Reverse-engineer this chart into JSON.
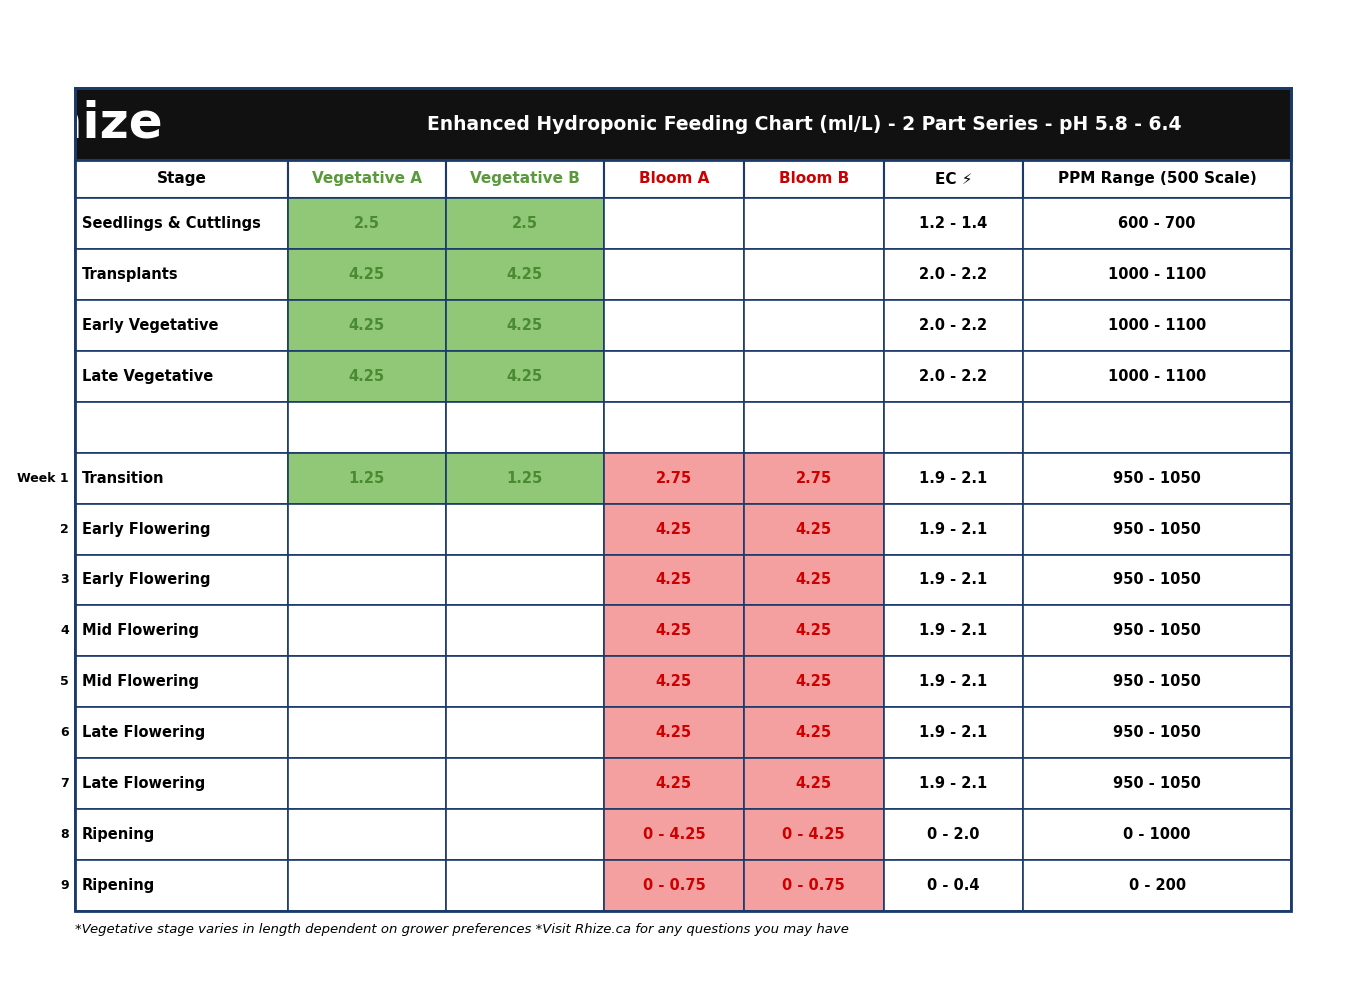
{
  "title": "Enhanced Hydroponic Feeding Chart (ml/L) - 2 Part Series - pH 5.8 - 6.4",
  "logo_text": "rhize",
  "header_bg": "#111111",
  "header_text_color": "#ffffff",
  "table_border_color": "#1a3a6b",
  "col_headers": [
    "Stage",
    "Vegetative A",
    "Vegetative B",
    "Bloom A",
    "Bloom B",
    "EC ⚡",
    "PPM Range (500 Scale)"
  ],
  "col_header_colors": [
    "#000000",
    "#5a9a3a",
    "#5a9a3a",
    "#cc0000",
    "#cc0000",
    "#000000",
    "#000000"
  ],
  "rows": [
    {
      "week": "",
      "stage": "Seedlings & Cuttlings",
      "veg_a": "2.5",
      "veg_b": "2.5",
      "bloom_a": "",
      "bloom_b": "",
      "ec": "1.2 - 1.4",
      "ppm": "600 - 700",
      "veg_bg": "#90c878",
      "bloom_bg": "#ffffff"
    },
    {
      "week": "",
      "stage": "Transplants",
      "veg_a": "4.25",
      "veg_b": "4.25",
      "bloom_a": "",
      "bloom_b": "",
      "ec": "2.0 - 2.2",
      "ppm": "1000 - 1100",
      "veg_bg": "#90c878",
      "bloom_bg": "#ffffff"
    },
    {
      "week": "",
      "stage": "Early Vegetative",
      "veg_a": "4.25",
      "veg_b": "4.25",
      "bloom_a": "",
      "bloom_b": "",
      "ec": "2.0 - 2.2",
      "ppm": "1000 - 1100",
      "veg_bg": "#90c878",
      "bloom_bg": "#ffffff"
    },
    {
      "week": "",
      "stage": "Late Vegetative",
      "veg_a": "4.25",
      "veg_b": "4.25",
      "bloom_a": "",
      "bloom_b": "",
      "ec": "2.0 - 2.2",
      "ppm": "1000 - 1100",
      "veg_bg": "#90c878",
      "bloom_bg": "#ffffff"
    },
    {
      "week": "",
      "stage": "",
      "veg_a": "",
      "veg_b": "",
      "bloom_a": "",
      "bloom_b": "",
      "ec": "",
      "ppm": "",
      "veg_bg": "#ffffff",
      "bloom_bg": "#ffffff"
    },
    {
      "week": "Week 1",
      "stage": "Transition",
      "veg_a": "1.25",
      "veg_b": "1.25",
      "bloom_a": "2.75",
      "bloom_b": "2.75",
      "ec": "1.9 - 2.1",
      "ppm": "950 - 1050",
      "veg_bg": "#90c878",
      "bloom_bg": "#f5a0a0"
    },
    {
      "week": "2",
      "stage": "Early Flowering",
      "veg_a": "",
      "veg_b": "",
      "bloom_a": "4.25",
      "bloom_b": "4.25",
      "ec": "1.9 - 2.1",
      "ppm": "950 - 1050",
      "veg_bg": "#ffffff",
      "bloom_bg": "#f5a0a0"
    },
    {
      "week": "3",
      "stage": "Early Flowering",
      "veg_a": "",
      "veg_b": "",
      "bloom_a": "4.25",
      "bloom_b": "4.25",
      "ec": "1.9 - 2.1",
      "ppm": "950 - 1050",
      "veg_bg": "#ffffff",
      "bloom_bg": "#f5a0a0"
    },
    {
      "week": "4",
      "stage": "Mid Flowering",
      "veg_a": "",
      "veg_b": "",
      "bloom_a": "4.25",
      "bloom_b": "4.25",
      "ec": "1.9 - 2.1",
      "ppm": "950 - 1050",
      "veg_bg": "#ffffff",
      "bloom_bg": "#f5a0a0"
    },
    {
      "week": "5",
      "stage": "Mid Flowering",
      "veg_a": "",
      "veg_b": "",
      "bloom_a": "4.25",
      "bloom_b": "4.25",
      "ec": "1.9 - 2.1",
      "ppm": "950 - 1050",
      "veg_bg": "#ffffff",
      "bloom_bg": "#f5a0a0"
    },
    {
      "week": "6",
      "stage": "Late Flowering",
      "veg_a": "",
      "veg_b": "",
      "bloom_a": "4.25",
      "bloom_b": "4.25",
      "ec": "1.9 - 2.1",
      "ppm": "950 - 1050",
      "veg_bg": "#ffffff",
      "bloom_bg": "#f5a0a0"
    },
    {
      "week": "7",
      "stage": "Late Flowering",
      "veg_a": "",
      "veg_b": "",
      "bloom_a": "4.25",
      "bloom_b": "4.25",
      "ec": "1.9 - 2.1",
      "ppm": "950 - 1050",
      "veg_bg": "#ffffff",
      "bloom_bg": "#f5a0a0"
    },
    {
      "week": "8",
      "stage": "Ripening",
      "veg_a": "",
      "veg_b": "",
      "bloom_a": "0 - 4.25",
      "bloom_b": "0 - 4.25",
      "ec": "0 - 2.0",
      "ppm": "0 - 1000",
      "veg_bg": "#ffffff",
      "bloom_bg": "#f5a0a0"
    },
    {
      "week": "9",
      "stage": "Ripening",
      "veg_a": "",
      "veg_b": "",
      "bloom_a": "0 - 0.75",
      "bloom_b": "0 - 0.75",
      "ec": "0 - 0.4",
      "ppm": "0 - 200",
      "veg_bg": "#ffffff",
      "bloom_bg": "#f5a0a0"
    }
  ],
  "footer_text": "*Vegetative stage varies in length dependent on grower preferences *Visit Rhize.ca for any questions you may have",
  "bg_color": "#ffffff",
  "fig_width": 13.66,
  "fig_height": 9.96,
  "dpi": 100
}
